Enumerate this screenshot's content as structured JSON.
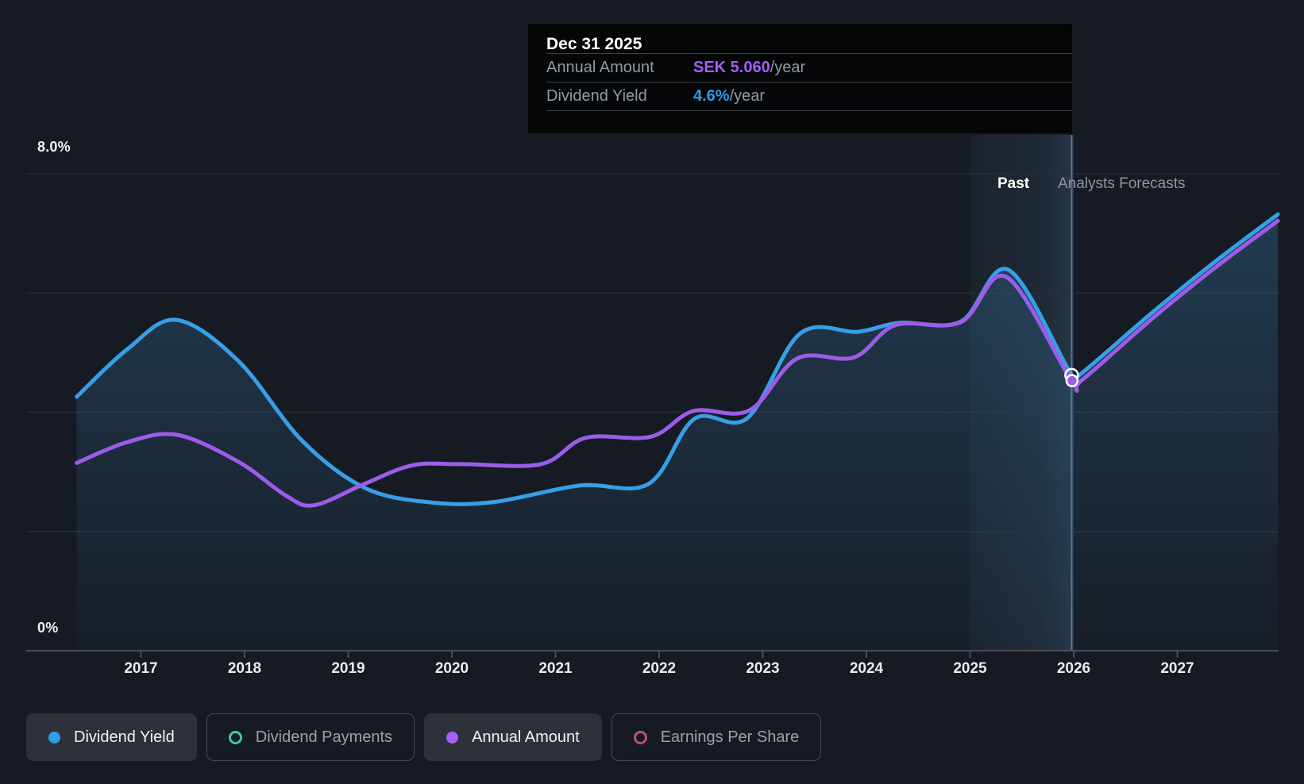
{
  "tooltip": {
    "date": "Dec 31 2025",
    "rows": [
      {
        "label": "Annual Amount",
        "value": "SEK 5.060",
        "suffix": "/year",
        "color": "#a55ef8"
      },
      {
        "label": "Dividend Yield",
        "value": "4.6%",
        "suffix": "/year",
        "color": "#2e9fe8"
      }
    ]
  },
  "zones": {
    "past_label": "Past",
    "forecast_label": "Analysts Forecasts"
  },
  "y_axis": {
    "top_label": "8.0%",
    "bottom_label": "0%"
  },
  "legend": [
    {
      "label": "Dividend Yield",
      "color": "#2d9fe8",
      "style": "filled",
      "active": true
    },
    {
      "label": "Dividend Payments",
      "color": "#46c2b2",
      "style": "ring",
      "active": false
    },
    {
      "label": "Annual Amount",
      "color": "#ab5cf5",
      "style": "filled",
      "active": true
    },
    {
      "label": "Earnings Per Share",
      "color": "#c04d85",
      "style": "ring",
      "active": false
    }
  ],
  "chart_data": {
    "type": "area",
    "title": "Dividend yield history and forecast",
    "x_ticks": [
      "2017",
      "2018",
      "2019",
      "2020",
      "2021",
      "2022",
      "2023",
      "2024",
      "2025",
      "2026",
      "2027"
    ],
    "ylim": [
      0,
      8
    ],
    "grid_values": [
      2,
      4,
      6,
      8
    ],
    "highlight_band": [
      2025.0,
      2026.0
    ],
    "divider_year": 2025.98,
    "marker_year": 2025.98,
    "marker_note": "Dec 31 2025: Dividend Yield 4.6%/year, Annual Amount SEK 5.060/year",
    "series": [
      {
        "name": "Dividend Yield",
        "unit": "%",
        "color": "#369fe6",
        "area": true,
        "points": [
          [
            2016.38,
            4.26
          ],
          [
            2016.87,
            5.06
          ],
          [
            2017.34,
            5.55
          ],
          [
            2017.94,
            4.86
          ],
          [
            2018.55,
            3.53
          ],
          [
            2019.16,
            2.73
          ],
          [
            2019.78,
            2.49
          ],
          [
            2020.39,
            2.49
          ],
          [
            2021.23,
            2.77
          ],
          [
            2021.9,
            2.8
          ],
          [
            2022.34,
            3.89
          ],
          [
            2022.85,
            3.9
          ],
          [
            2023.36,
            5.32
          ],
          [
            2023.92,
            5.35
          ],
          [
            2024.32,
            5.5
          ],
          [
            2024.91,
            5.52
          ],
          [
            2025.37,
            6.39
          ],
          [
            2025.98,
            4.62
          ],
          [
            2026.06,
            4.63
          ],
          [
            2026.75,
            5.66
          ],
          [
            2027.36,
            6.52
          ],
          [
            2027.97,
            7.32
          ]
        ]
      },
      {
        "name": "Annual Amount",
        "unit": "axis-equivalent (SEK plotted on hidden scale; Dec 31 2025 = SEK 5.060/year)",
        "color": "#9c5ce8",
        "area": false,
        "points": [
          [
            2016.38,
            3.15
          ],
          [
            2016.87,
            3.5
          ],
          [
            2017.35,
            3.62
          ],
          [
            2017.94,
            3.17
          ],
          [
            2018.4,
            2.6
          ],
          [
            2018.67,
            2.44
          ],
          [
            2019.16,
            2.8
          ],
          [
            2019.62,
            3.11
          ],
          [
            2020.1,
            3.13
          ],
          [
            2020.86,
            3.13
          ],
          [
            2021.29,
            3.57
          ],
          [
            2021.92,
            3.59
          ],
          [
            2022.33,
            4.02
          ],
          [
            2022.87,
            4.03
          ],
          [
            2023.33,
            4.9
          ],
          [
            2023.88,
            4.92
          ],
          [
            2024.28,
            5.46
          ],
          [
            2024.91,
            5.51
          ],
          [
            2025.35,
            6.27
          ],
          [
            2025.98,
            4.53
          ],
          [
            2026.08,
            4.54
          ],
          [
            2026.75,
            5.56
          ],
          [
            2027.36,
            6.42
          ],
          [
            2027.97,
            7.21
          ]
        ]
      }
    ],
    "colors": {
      "background": "#161b23",
      "gridline": "#262d36",
      "axis": "#474e58",
      "area_fill": "58,128,180",
      "band": "110,170,225",
      "crosshair": "rgba(130,180,225,0.5)"
    }
  }
}
